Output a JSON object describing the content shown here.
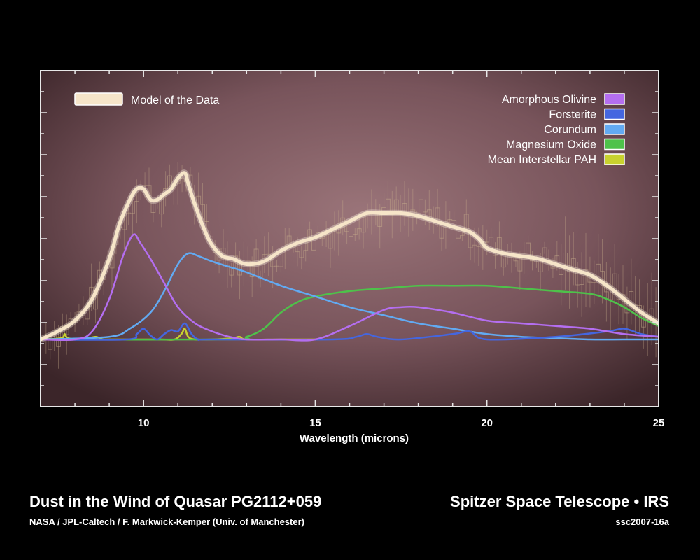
{
  "chart_data": {
    "type": "line",
    "xlabel": "Wavelength (microns)",
    "ylabel": "",
    "xlim": [
      7,
      25
    ],
    "ylim": [
      -0.25,
      1.0
    ],
    "x_ticks": [
      10,
      15,
      20,
      25
    ],
    "legend": [
      {
        "label": "Model of the Data",
        "color": "#f6e5c9",
        "placement": "top-left"
      },
      {
        "label": "Amorphous Olivine",
        "color": "#b46ef0",
        "placement": "top-right"
      },
      {
        "label": "Forsterite",
        "color": "#4466e0",
        "placement": "top-right"
      },
      {
        "label": "Corundum",
        "color": "#62aaf2",
        "placement": "top-right"
      },
      {
        "label": "Magnesium Oxide",
        "color": "#4ec24a",
        "placement": "top-right"
      },
      {
        "label": "Mean Interstellar PAH",
        "color": "#c8d22e",
        "placement": "top-right"
      }
    ],
    "series": [
      {
        "name": "Model of the Data",
        "color": "#f6e5c9",
        "x": [
          7.0,
          7.5,
          8.0,
          8.5,
          9.0,
          9.3,
          9.6,
          9.8,
          10.0,
          10.2,
          10.4,
          10.6,
          10.8,
          11.0,
          11.2,
          11.3,
          11.5,
          11.8,
          12.0,
          12.3,
          12.6,
          13.0,
          13.5,
          14.0,
          14.5,
          15.0,
          15.5,
          16.0,
          16.5,
          17.0,
          17.5,
          18.0,
          18.5,
          19.0,
          19.5,
          19.8,
          20.0,
          20.5,
          21.0,
          21.5,
          22.0,
          22.5,
          23.0,
          23.5,
          24.0,
          24.5,
          25.0
        ],
        "y": [
          0.0,
          0.03,
          0.07,
          0.15,
          0.3,
          0.43,
          0.52,
          0.56,
          0.56,
          0.52,
          0.52,
          0.54,
          0.56,
          0.6,
          0.62,
          0.58,
          0.5,
          0.4,
          0.35,
          0.31,
          0.3,
          0.28,
          0.29,
          0.33,
          0.36,
          0.38,
          0.41,
          0.44,
          0.47,
          0.47,
          0.47,
          0.46,
          0.44,
          0.42,
          0.4,
          0.37,
          0.34,
          0.32,
          0.31,
          0.3,
          0.28,
          0.26,
          0.24,
          0.2,
          0.15,
          0.1,
          0.06
        ]
      },
      {
        "name": "Amorphous Olivine",
        "color": "#b46ef0",
        "x": [
          7.0,
          8.0,
          8.5,
          9.0,
          9.4,
          9.7,
          9.9,
          10.2,
          10.6,
          11.0,
          11.5,
          12.0,
          12.5,
          13.0,
          14.0,
          15.0,
          16.0,
          17.0,
          17.5,
          18.0,
          19.0,
          20.0,
          21.0,
          22.0,
          23.0,
          24.0,
          25.0
        ],
        "y": [
          0.0,
          0.0,
          0.03,
          0.15,
          0.31,
          0.39,
          0.36,
          0.3,
          0.21,
          0.12,
          0.06,
          0.03,
          0.01,
          0.0,
          0.0,
          0.0,
          0.05,
          0.11,
          0.12,
          0.12,
          0.1,
          0.07,
          0.06,
          0.05,
          0.04,
          0.02,
          0.01
        ]
      },
      {
        "name": "Forsterite",
        "color": "#4466e0",
        "x": [
          7.0,
          9.5,
          9.8,
          10.0,
          10.2,
          10.4,
          10.6,
          10.8,
          11.0,
          11.2,
          11.4,
          11.6,
          12.0,
          15.5,
          16.2,
          16.5,
          16.8,
          17.5,
          19.0,
          19.5,
          20.0,
          22.0,
          23.5,
          24.0,
          24.5,
          25.0
        ],
        "y": [
          0.0,
          0.0,
          0.02,
          0.04,
          0.015,
          0.0,
          0.02,
          0.035,
          0.03,
          0.06,
          0.02,
          0.0,
          0.0,
          0.0,
          0.01,
          0.02,
          0.01,
          0.0,
          0.02,
          0.03,
          0.0,
          0.01,
          0.03,
          0.04,
          0.02,
          0.01
        ]
      },
      {
        "name": "Corundum",
        "color": "#62aaf2",
        "x": [
          7.0,
          9.0,
          9.6,
          10.2,
          10.6,
          11.0,
          11.3,
          11.6,
          12.0,
          12.5,
          13.0,
          14.0,
          15.0,
          16.0,
          17.0,
          18.0,
          19.0,
          20.0,
          21.0,
          22.0,
          23.0,
          24.0,
          25.0
        ],
        "y": [
          0.0,
          0.01,
          0.04,
          0.1,
          0.18,
          0.28,
          0.32,
          0.31,
          0.29,
          0.27,
          0.25,
          0.2,
          0.16,
          0.12,
          0.09,
          0.06,
          0.04,
          0.02,
          0.01,
          0.005,
          0.0,
          0.0,
          0.0
        ]
      },
      {
        "name": "Magnesium Oxide",
        "color": "#4ec24a",
        "x": [
          7.0,
          12.5,
          13.0,
          13.5,
          14.0,
          14.5,
          15.0,
          16.0,
          17.0,
          18.0,
          19.0,
          20.0,
          21.0,
          22.0,
          23.0,
          23.5,
          24.0,
          24.5,
          25.0
        ],
        "y": [
          0.0,
          0.0,
          0.01,
          0.04,
          0.1,
          0.14,
          0.16,
          0.18,
          0.19,
          0.2,
          0.2,
          0.2,
          0.19,
          0.18,
          0.17,
          0.15,
          0.12,
          0.08,
          0.05
        ]
      },
      {
        "name": "Mean Interstellar PAH",
        "color": "#c8d22e",
        "x": [
          7.0,
          7.6,
          7.7,
          7.8,
          8.2,
          8.6,
          8.8,
          9.0,
          10.0,
          10.5,
          10.9,
          11.1,
          11.2,
          11.3,
          11.5,
          12.0,
          12.6,
          12.8,
          13.0,
          14.0,
          15.0
        ],
        "y": [
          0.0,
          0.005,
          0.02,
          0.005,
          0.0,
          0.01,
          0.0,
          0.0,
          0.0,
          0.0,
          0.0,
          0.02,
          0.04,
          0.01,
          0.0,
          0.0,
          0.005,
          0.01,
          0.0,
          0.0,
          0.0
        ]
      }
    ]
  },
  "footer": {
    "title": "Dust in the Wind of Quasar PG2112+059",
    "credit": "NASA / JPL-Caltech / F. Markwick-Kemper (Univ. of Manchester)",
    "mission": "Spitzer Space Telescope • IRS",
    "image_id": "ssc2007-16a"
  }
}
